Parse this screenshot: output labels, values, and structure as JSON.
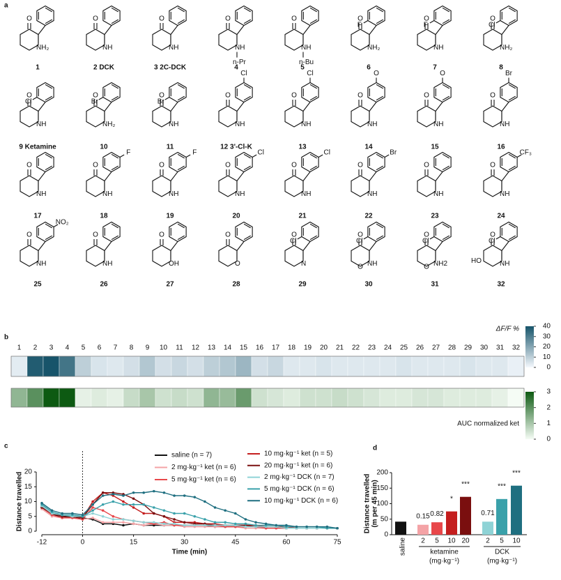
{
  "panels": [
    "a",
    "b",
    "c",
    "d"
  ],
  "compounds": [
    {
      "label": "1",
      "ketone": "O",
      "amine": "NH₂"
    },
    {
      "label": "2 DCK",
      "ketone": "O",
      "amine": "NH"
    },
    {
      "label": "3 2C-DCK",
      "ketone": "O",
      "amine": "NH"
    },
    {
      "label": "4",
      "ketone": "O",
      "amine": "NH",
      "n_substituent": "n-Pr"
    },
    {
      "label": "5",
      "ketone": "O",
      "amine": "NH",
      "n_substituent": "n-Bu"
    },
    {
      "label": "6",
      "ketone": "O",
      "amine": "NH₂",
      "ring_substituent": "F",
      "site": "ortho"
    },
    {
      "label": "7",
      "ketone": "O",
      "amine": "NH",
      "ring_substituent": "F",
      "site": "ortho"
    },
    {
      "label": "8",
      "ketone": "O",
      "amine": "NH₂",
      "ring_substituent": "Cl",
      "site": "ortho"
    },
    {
      "label": "9 Ketamine",
      "ketone": "O",
      "amine": "NH",
      "ring_substituent": "Cl",
      "site": "ortho"
    },
    {
      "label": "10",
      "ketone": "O",
      "amine": "NH₂",
      "ring_substituent": "Br",
      "site": "ortho"
    },
    {
      "label": "11",
      "ketone": "O",
      "amine": "NH",
      "ring_substituent": "Br",
      "site": "ortho"
    },
    {
      "label": "12 3'-Cl-K",
      "ketone": "O",
      "amine": "NH",
      "ring_substituent": "Cl",
      "site": "meta"
    },
    {
      "label": "13",
      "ketone": "O",
      "amine": "NH",
      "ring_substituent": "Cl",
      "site": "meta"
    },
    {
      "label": "14",
      "ketone": "O",
      "amine": "NH",
      "ring_substituent": "O",
      "site": "meta"
    },
    {
      "label": "15",
      "ketone": "O",
      "amine": "NH",
      "ring_substituent": "O",
      "site": "meta"
    },
    {
      "label": "16",
      "ketone": "O",
      "amine": "NH",
      "ring_substituent": "Br",
      "site": "meta"
    },
    {
      "label": "17",
      "ketone": "O",
      "amine": "NH"
    },
    {
      "label": "18",
      "ketone": "O",
      "amine": "NH",
      "ring_substituent": "F",
      "site": "para"
    },
    {
      "label": "19",
      "ketone": "O",
      "amine": "NH",
      "ring_substituent": "F",
      "site": "para"
    },
    {
      "label": "20",
      "ketone": "O",
      "amine": "NH",
      "ring_substituent": "Cl",
      "site": "para"
    },
    {
      "label": "21",
      "ketone": "O",
      "amine": "NH",
      "ring_substituent": "Cl",
      "site": "para"
    },
    {
      "label": "22",
      "ketone": "O",
      "amine": "NH",
      "ring_substituent": "Br",
      "site": "para"
    },
    {
      "label": "23",
      "ketone": "O",
      "amine": "NH"
    },
    {
      "label": "24",
      "ketone": "O",
      "amine": "NH",
      "ring_substituent": "CF₃",
      "site": "para"
    },
    {
      "label": "25",
      "ketone": "O",
      "amine": "NH",
      "ring_substituent": "NO₂",
      "site": "para"
    },
    {
      "label": "26",
      "ketone": "O",
      "amine": "NH"
    },
    {
      "label": "27",
      "ketone": "O",
      "amine": "OH"
    },
    {
      "label": "28",
      "ketone": "O",
      "amine": "O"
    },
    {
      "label": "29",
      "ketone": "O",
      "amine": "N",
      "ring_substituent": "Cl",
      "site": "ortho"
    },
    {
      "label": "30",
      "ketone": "O",
      "amine": "NH",
      "ring_substituent": "Cl",
      "site": "ortho",
      "ring_o": "O"
    },
    {
      "label": "31",
      "ketone": "O",
      "amine": "NH2",
      "ring_substituent": "Cl",
      "site": "ortho",
      "ring_o": "O"
    },
    {
      "label": "32",
      "ketone": "O",
      "amine": "NH",
      "ring_substituent": "Cl",
      "site": "ortho",
      "ring_oh": "HO"
    }
  ],
  "chart_data": [
    {
      "type": "heatmap",
      "categories": [
        "1",
        "2",
        "3",
        "4",
        "5",
        "6",
        "7",
        "8",
        "9",
        "10",
        "11",
        "12",
        "13",
        "14",
        "15",
        "16",
        "17",
        "18",
        "19",
        "20",
        "21",
        "22",
        "23",
        "24",
        "25",
        "26",
        "27",
        "28",
        "29",
        "30",
        "31",
        "32"
      ],
      "rows": [
        {
          "name": "ΔF/F %",
          "values": [
            3,
            38,
            40,
            32,
            10,
            5,
            4,
            6,
            12,
            6,
            8,
            6,
            10,
            12,
            16,
            6,
            8,
            4,
            4,
            5,
            4,
            4,
            4,
            4,
            5,
            4,
            4,
            4,
            5,
            4,
            4,
            2
          ],
          "lim": [
            0,
            40
          ],
          "ticks": [
            0,
            10,
            20,
            30,
            40
          ],
          "colors": [
            "#f4f8fd",
            "#17546a"
          ]
        },
        {
          "name": "AUC normalized ket",
          "values": [
            1.3,
            2,
            3,
            3,
            0.2,
            0.3,
            0.2,
            0.6,
            1,
            0.5,
            0.6,
            0.5,
            1.3,
            1.2,
            1.8,
            0.5,
            0.4,
            0.3,
            0.5,
            0.5,
            0.6,
            0.5,
            0.4,
            0.3,
            0.3,
            0.4,
            0.4,
            0.3,
            0.3,
            0.3,
            0.2,
            0
          ],
          "lim": [
            0,
            3
          ],
          "ticks": [
            0,
            1,
            2,
            3
          ],
          "colors": [
            "#f5fcf5",
            "#0d5a12"
          ]
        }
      ]
    },
    {
      "type": "line",
      "xlabel": "Time (min)",
      "ylabel": "Distance travelled",
      "x": [
        -12,
        -9,
        -6,
        -3,
        0,
        3,
        6,
        9,
        12,
        15,
        18,
        21,
        24,
        27,
        30,
        33,
        36,
        39,
        42,
        45,
        48,
        51,
        54,
        57,
        60,
        63,
        66,
        69,
        72,
        75
      ],
      "xlim": [
        -12,
        75
      ],
      "xticks": [
        -12,
        0,
        15,
        30,
        45,
        60,
        75
      ],
      "ylim": [
        0,
        20
      ],
      "yticks": [
        0,
        5,
        10,
        15,
        20
      ],
      "series": [
        {
          "name": "saline (n = 7)",
          "color": "#111111",
          "values": [
            8,
            5.5,
            5,
            4.5,
            4.5,
            4,
            2.5,
            2.5,
            2,
            2.5,
            2,
            2,
            2,
            2,
            2,
            2,
            2,
            1.5,
            1.5,
            1.5,
            1.5,
            1.5,
            1,
            1,
            1,
            1,
            1,
            1,
            1,
            1
          ]
        },
        {
          "name": "2 mg·kg⁻¹ ket (n = 6)",
          "color": "#f4a3a6",
          "values": [
            7.5,
            5,
            4.5,
            4.5,
            4,
            4.5,
            3,
            3,
            3,
            2.5,
            2,
            2.5,
            2,
            2,
            1.5,
            1.5,
            1.5,
            1.5,
            1.5,
            1.5,
            1,
            1,
            1,
            1,
            1,
            1,
            1,
            1,
            1,
            1
          ]
        },
        {
          "name": "5 mg·kg⁻¹ ket (n = 6)",
          "color": "#e8474a",
          "values": [
            8,
            5.5,
            4.5,
            4.5,
            4,
            8,
            7,
            5,
            4,
            3.5,
            3,
            2.5,
            3,
            2,
            2,
            2,
            2,
            2,
            1.5,
            1.5,
            1.5,
            1.5,
            1,
            1,
            1,
            1,
            1,
            1,
            1,
            1
          ]
        },
        {
          "name": "10 mg·kg⁻¹ ket (n = 5)",
          "color": "#c41e1e",
          "values": [
            8.5,
            6,
            5,
            5,
            4.5,
            10,
            13,
            12,
            10,
            8,
            6,
            6,
            5,
            3,
            3,
            3,
            2.5,
            2.5,
            2,
            2,
            2,
            2,
            1.5,
            1.5,
            1.5,
            1,
            1,
            1,
            1,
            1
          ]
        },
        {
          "name": "20 mg·kg⁻¹ ket (n = 6)",
          "color": "#7a0f0f",
          "values": [
            8,
            6,
            5,
            5,
            4.5,
            9,
            13,
            13,
            12.5,
            11,
            9,
            6,
            5,
            4,
            3,
            2.5,
            2.5,
            2,
            2,
            2,
            2,
            1.5,
            1.5,
            1.5,
            1,
            1,
            1,
            1,
            1,
            1
          ]
        },
        {
          "name": "2 mg·kg⁻¹ DCK (n = 7)",
          "color": "#8fd3d6",
          "values": [
            8.5,
            6,
            5.5,
            5,
            5,
            6,
            5,
            4,
            4,
            3.5,
            3,
            3,
            2.5,
            2.5,
            2,
            2,
            2,
            2,
            2,
            2,
            1.5,
            1.5,
            1.5,
            1.5,
            1,
            1,
            1,
            1,
            1,
            1
          ]
        },
        {
          "name": "5 mg·kg⁻¹ DCK (n = 6)",
          "color": "#3aa1aa",
          "values": [
            9,
            6.5,
            5.5,
            5.5,
            5,
            7,
            9,
            10,
            9,
            9,
            9,
            8,
            7,
            6,
            6,
            5,
            4,
            3,
            3,
            2.5,
            2.5,
            2,
            2,
            2,
            1.5,
            1.5,
            1.5,
            1.5,
            1,
            1
          ]
        },
        {
          "name": "10 mg·kg⁻¹ DCK (n = 6)",
          "color": "#1f6f80",
          "values": [
            9.5,
            7,
            6,
            6,
            5.5,
            9,
            12,
            12.5,
            12,
            13,
            13,
            13.5,
            13,
            12,
            12,
            11.5,
            10,
            8,
            7,
            6,
            4,
            3,
            2.5,
            2,
            2,
            1.5,
            1.5,
            1.5,
            1.5,
            1
          ]
        }
      ]
    },
    {
      "type": "bar",
      "ylabel": [
        "Distance travelled",
        "(m per 45 min)"
      ],
      "categories": [
        "saline",
        "2",
        "5",
        "10",
        "20",
        "2",
        "5",
        "10"
      ],
      "values": [
        42,
        32,
        40,
        75,
        122,
        42,
        115,
        158
      ],
      "colors": [
        "#111111",
        "#f4a3a6",
        "#e8474a",
        "#c41e1e",
        "#7a0f0f",
        "#8fd3d6",
        "#3aa1aa",
        "#1f6f80"
      ],
      "annotations": [
        null,
        "0.15",
        "0.82",
        "*",
        "***",
        "0.71",
        "***",
        "***"
      ],
      "groups": [
        {
          "label": "ketamine",
          "unit": "(mg·kg⁻¹)",
          "size": 4
        },
        {
          "label": "DCK",
          "unit": "(mg·kg⁻¹)",
          "size": 3
        }
      ],
      "ylim": [
        0,
        200
      ],
      "yticks": [
        0,
        50,
        100,
        150,
        200
      ]
    }
  ]
}
